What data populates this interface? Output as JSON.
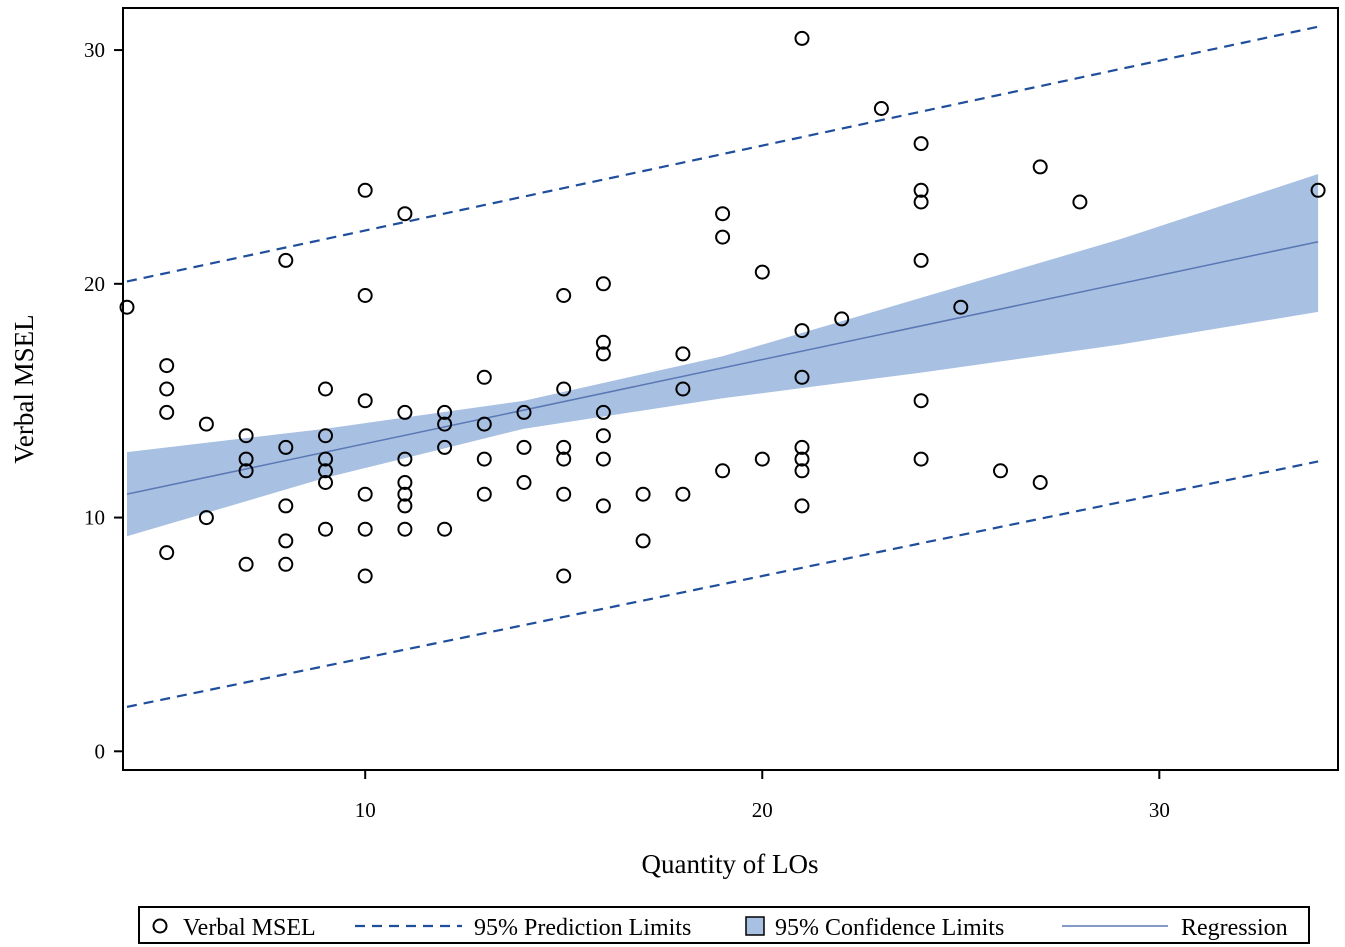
{
  "chart_data": {
    "type": "scatter",
    "xlabel": "Quantity of LOs",
    "ylabel": "Verbal MSEL",
    "xlim": [
      3.9,
      34.5
    ],
    "ylim": [
      -0.8,
      31.8
    ],
    "xticks": [
      10,
      20,
      30
    ],
    "yticks": [
      0,
      10,
      20,
      30
    ],
    "grid": false,
    "legend_position": "bottom",
    "colors": {
      "prediction": "#1f4e9c",
      "confidence_fill": "#a8c0e2",
      "regression": "#5a78b4",
      "points": "#000000"
    },
    "legend": [
      {
        "key": "points",
        "label": "Verbal MSEL"
      },
      {
        "key": "prediction",
        "label": "95% Prediction Limits"
      },
      {
        "key": "confidence",
        "label": "95% Confidence Limits"
      },
      {
        "key": "regression",
        "label": "Regression"
      }
    ],
    "regression": {
      "x": [
        4,
        34
      ],
      "y": [
        11.0,
        21.8
      ]
    },
    "prediction_limits": {
      "upper": {
        "x": [
          4,
          34
        ],
        "y": [
          20.1,
          31.0
        ]
      },
      "lower": {
        "x": [
          4,
          34
        ],
        "y": [
          1.9,
          12.4
        ]
      }
    },
    "confidence_band": {
      "x": [
        4,
        9,
        14,
        19,
        24,
        29,
        34
      ],
      "upper": [
        12.8,
        13.8,
        15.0,
        16.9,
        19.4,
        21.9,
        24.7
      ],
      "lower": [
        9.2,
        11.7,
        13.8,
        15.1,
        16.2,
        17.4,
        18.8
      ]
    },
    "points": [
      {
        "x": 4,
        "y": 19
      },
      {
        "x": 5,
        "y": 16.5
      },
      {
        "x": 5,
        "y": 15.5
      },
      {
        "x": 5,
        "y": 14.5
      },
      {
        "x": 5,
        "y": 8.5
      },
      {
        "x": 6,
        "y": 14
      },
      {
        "x": 6,
        "y": 10
      },
      {
        "x": 7,
        "y": 13.5
      },
      {
        "x": 7,
        "y": 12.5
      },
      {
        "x": 7,
        "y": 12
      },
      {
        "x": 7,
        "y": 8
      },
      {
        "x": 8,
        "y": 21
      },
      {
        "x": 8,
        "y": 13
      },
      {
        "x": 8,
        "y": 10.5
      },
      {
        "x": 8,
        "y": 9
      },
      {
        "x": 8,
        "y": 8
      },
      {
        "x": 9,
        "y": 15.5
      },
      {
        "x": 9,
        "y": 13.5
      },
      {
        "x": 9,
        "y": 12.5
      },
      {
        "x": 9,
        "y": 12
      },
      {
        "x": 9,
        "y": 11.5
      },
      {
        "x": 9,
        "y": 9.5
      },
      {
        "x": 10,
        "y": 24
      },
      {
        "x": 10,
        "y": 19.5
      },
      {
        "x": 10,
        "y": 15
      },
      {
        "x": 10,
        "y": 11
      },
      {
        "x": 10,
        "y": 9.5
      },
      {
        "x": 10,
        "y": 7.5
      },
      {
        "x": 11,
        "y": 23
      },
      {
        "x": 11,
        "y": 14.5
      },
      {
        "x": 11,
        "y": 12.5
      },
      {
        "x": 11,
        "y": 11.5
      },
      {
        "x": 11,
        "y": 11
      },
      {
        "x": 11,
        "y": 10.5
      },
      {
        "x": 11,
        "y": 9.5
      },
      {
        "x": 12,
        "y": 14.5
      },
      {
        "x": 12,
        "y": 14
      },
      {
        "x": 12,
        "y": 13
      },
      {
        "x": 12,
        "y": 9.5
      },
      {
        "x": 13,
        "y": 16
      },
      {
        "x": 13,
        "y": 14
      },
      {
        "x": 13,
        "y": 12.5
      },
      {
        "x": 13,
        "y": 11
      },
      {
        "x": 14,
        "y": 14.5
      },
      {
        "x": 14,
        "y": 13
      },
      {
        "x": 14,
        "y": 11.5
      },
      {
        "x": 15,
        "y": 19.5
      },
      {
        "x": 15,
        "y": 15.5
      },
      {
        "x": 15,
        "y": 13
      },
      {
        "x": 15,
        "y": 12.5
      },
      {
        "x": 15,
        "y": 11
      },
      {
        "x": 15,
        "y": 7.5
      },
      {
        "x": 16,
        "y": 20
      },
      {
        "x": 16,
        "y": 17.5
      },
      {
        "x": 16,
        "y": 17
      },
      {
        "x": 16,
        "y": 14.5
      },
      {
        "x": 16,
        "y": 13.5
      },
      {
        "x": 16,
        "y": 12.5
      },
      {
        "x": 16,
        "y": 10.5
      },
      {
        "x": 17,
        "y": 11
      },
      {
        "x": 17,
        "y": 9
      },
      {
        "x": 18,
        "y": 17
      },
      {
        "x": 18,
        "y": 15.5
      },
      {
        "x": 18,
        "y": 11
      },
      {
        "x": 19,
        "y": 23
      },
      {
        "x": 19,
        "y": 22
      },
      {
        "x": 19,
        "y": 12
      },
      {
        "x": 20,
        "y": 20.5
      },
      {
        "x": 20,
        "y": 12.5
      },
      {
        "x": 21,
        "y": 30.5
      },
      {
        "x": 21,
        "y": 18
      },
      {
        "x": 21,
        "y": 16
      },
      {
        "x": 21,
        "y": 13
      },
      {
        "x": 21,
        "y": 12.5
      },
      {
        "x": 21,
        "y": 12
      },
      {
        "x": 21,
        "y": 10.5
      },
      {
        "x": 22,
        "y": 18.5
      },
      {
        "x": 23,
        "y": 27.5
      },
      {
        "x": 24,
        "y": 26
      },
      {
        "x": 24,
        "y": 24
      },
      {
        "x": 24,
        "y": 23.5
      },
      {
        "x": 24,
        "y": 21
      },
      {
        "x": 24,
        "y": 15
      },
      {
        "x": 24,
        "y": 12.5
      },
      {
        "x": 25,
        "y": 19
      },
      {
        "x": 26,
        "y": 12
      },
      {
        "x": 27,
        "y": 25
      },
      {
        "x": 27,
        "y": 11.5
      },
      {
        "x": 28,
        "y": 23.5
      },
      {
        "x": 34,
        "y": 24
      }
    ]
  }
}
